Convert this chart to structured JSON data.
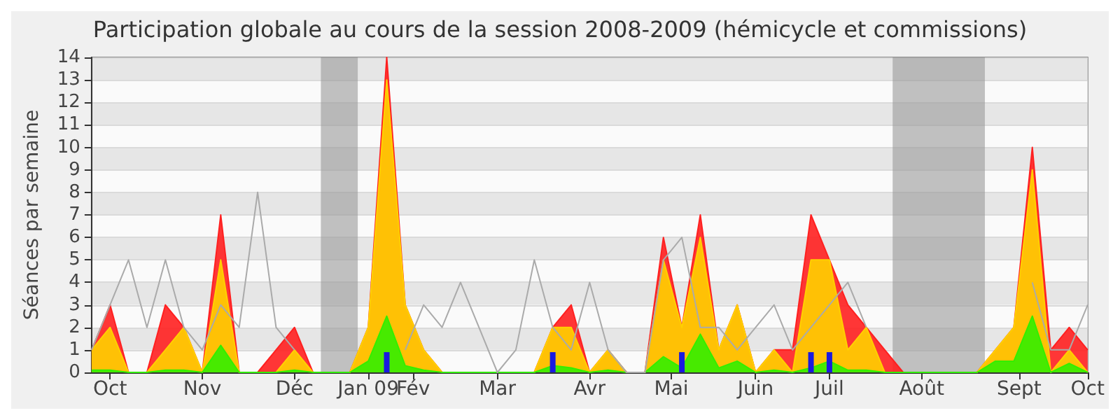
{
  "chart_data": {
    "type": "area",
    "title": "Participation globale au cours de la session 2008-2009 (hémicycle et commissions)",
    "ylabel": "Séances par semaine",
    "x": [
      "2008-09-29",
      "2008-10-06",
      "2008-10-13",
      "2008-10-20",
      "2008-10-27",
      "2008-11-03",
      "2008-11-10",
      "2008-11-17",
      "2008-11-24",
      "2008-12-01",
      "2008-12-08",
      "2008-12-15",
      "2008-12-22",
      "2008-12-29",
      "2009-01-05",
      "2009-01-12",
      "2009-01-19",
      "2009-01-26",
      "2009-02-02",
      "2009-02-09",
      "2009-02-16",
      "2009-02-23",
      "2009-03-02",
      "2009-03-09",
      "2009-03-16",
      "2009-03-23",
      "2009-03-30",
      "2009-04-06",
      "2009-04-13",
      "2009-04-20",
      "2009-04-27",
      "2009-05-04",
      "2009-05-11",
      "2009-05-18",
      "2009-05-25",
      "2009-06-01",
      "2009-06-08",
      "2009-06-15",
      "2009-06-22",
      "2009-06-29",
      "2009-07-06",
      "2009-07-13",
      "2009-07-20",
      "2009-07-27",
      "2009-08-03",
      "2009-08-10",
      "2009-08-17",
      "2009-08-24",
      "2009-08-31",
      "2009-09-07",
      "2009-09-14",
      "2009-09-21",
      "2009-09-28",
      "2009-10-05",
      "2009-10-12"
    ],
    "xlim": [
      "2008-09-29",
      "2009-10-12"
    ],
    "xticks": [
      {
        "value": "2008-10-06",
        "label": "Oct"
      },
      {
        "value": "2008-11-10",
        "label": "Nov"
      },
      {
        "value": "2008-12-15",
        "label": "Déc"
      },
      {
        "value": "2009-01-12",
        "label": "Jan 09"
      },
      {
        "value": "2009-01-29",
        "label": "Fév"
      },
      {
        "value": "2009-03-02",
        "label": "Mar"
      },
      {
        "value": "2009-04-06",
        "label": "Avr"
      },
      {
        "value": "2009-05-07",
        "label": "Mai"
      },
      {
        "value": "2009-06-08",
        "label": "Juin"
      },
      {
        "value": "2009-07-06",
        "label": "Juil"
      },
      {
        "value": "2009-08-10",
        "label": "Août"
      },
      {
        "value": "2009-09-16",
        "label": "Sept"
      },
      {
        "value": "2009-10-12",
        "label": "Oct"
      }
    ],
    "ylim": [
      0,
      14
    ],
    "yticks": [
      0,
      1,
      2,
      3,
      4,
      5,
      6,
      7,
      8,
      9,
      10,
      11,
      12,
      13,
      14
    ],
    "grid": "y",
    "bands": [
      {
        "axis": "x",
        "from": "2008-12-25",
        "to": "2009-01-08",
        "color": "#999999"
      },
      {
        "axis": "x",
        "from": "2009-07-30",
        "to": "2009-09-03",
        "color": "#999999"
      }
    ],
    "series": [
      {
        "color": "#ff2020",
        "values": [
          1,
          3,
          0,
          0,
          3,
          2,
          0,
          7,
          0,
          0,
          1,
          2,
          0,
          0,
          0,
          2,
          14,
          3,
          1,
          0,
          0,
          0,
          0,
          0,
          0,
          2,
          3,
          0,
          1,
          0,
          0,
          6,
          2,
          7,
          1,
          3,
          0,
          1,
          1,
          7,
          5,
          3,
          2,
          1,
          0,
          0,
          0,
          0,
          0,
          1,
          2,
          10,
          1,
          2,
          1
        ]
      },
      {
        "color": "#ffd000",
        "values": [
          1,
          2,
          0,
          0,
          1,
          2,
          0,
          5,
          0,
          0,
          0,
          1,
          0,
          0,
          0,
          2,
          13,
          3,
          1,
          0,
          0,
          0,
          0,
          0,
          0,
          2,
          2,
          0,
          1,
          0,
          0,
          5,
          2,
          6,
          1,
          3,
          0,
          1,
          0,
          5,
          5,
          1,
          2,
          0,
          0,
          0,
          0,
          0,
          0,
          1,
          2,
          9,
          0,
          1,
          0
        ]
      },
      {
        "color": "#33ee00",
        "values": [
          0.1,
          0.1,
          0,
          0,
          0.1,
          0.1,
          0,
          1.2,
          0,
          0,
          0,
          0.1,
          0,
          0,
          0,
          0.5,
          2.5,
          0.3,
          0.1,
          0,
          0,
          0,
          0,
          0,
          0,
          0.3,
          0.2,
          0,
          0.1,
          0,
          0,
          0.7,
          0.2,
          1.7,
          0.2,
          0.5,
          0,
          0.1,
          0,
          0.2,
          0.5,
          0.1,
          0.1,
          0,
          0,
          0,
          0,
          0,
          0,
          0.5,
          0.5,
          2.5,
          0,
          0.4,
          0
        ]
      },
      {
        "type": "line",
        "color": "#aaaaaa",
        "values": [
          1,
          3,
          5,
          2,
          5,
          2,
          1,
          3,
          2,
          8,
          2,
          1,
          null,
          null,
          null,
          null,
          null,
          1,
          3,
          2,
          4,
          2,
          0,
          1,
          5,
          2,
          1,
          4,
          1,
          0,
          0,
          5,
          6,
          2,
          2,
          1,
          2,
          3,
          1,
          2,
          3,
          4,
          2,
          null,
          null,
          null,
          null,
          null,
          null,
          null,
          null,
          4,
          1,
          1,
          3
        ]
      },
      {
        "type": "bar",
        "color": "#1a1ae0",
        "x": [
          "2009-01-19",
          "2009-03-23",
          "2009-05-11",
          "2009-06-29",
          "2009-07-06"
        ],
        "values": [
          0.9,
          0.9,
          0.9,
          0.9,
          0.9
        ]
      }
    ]
  }
}
